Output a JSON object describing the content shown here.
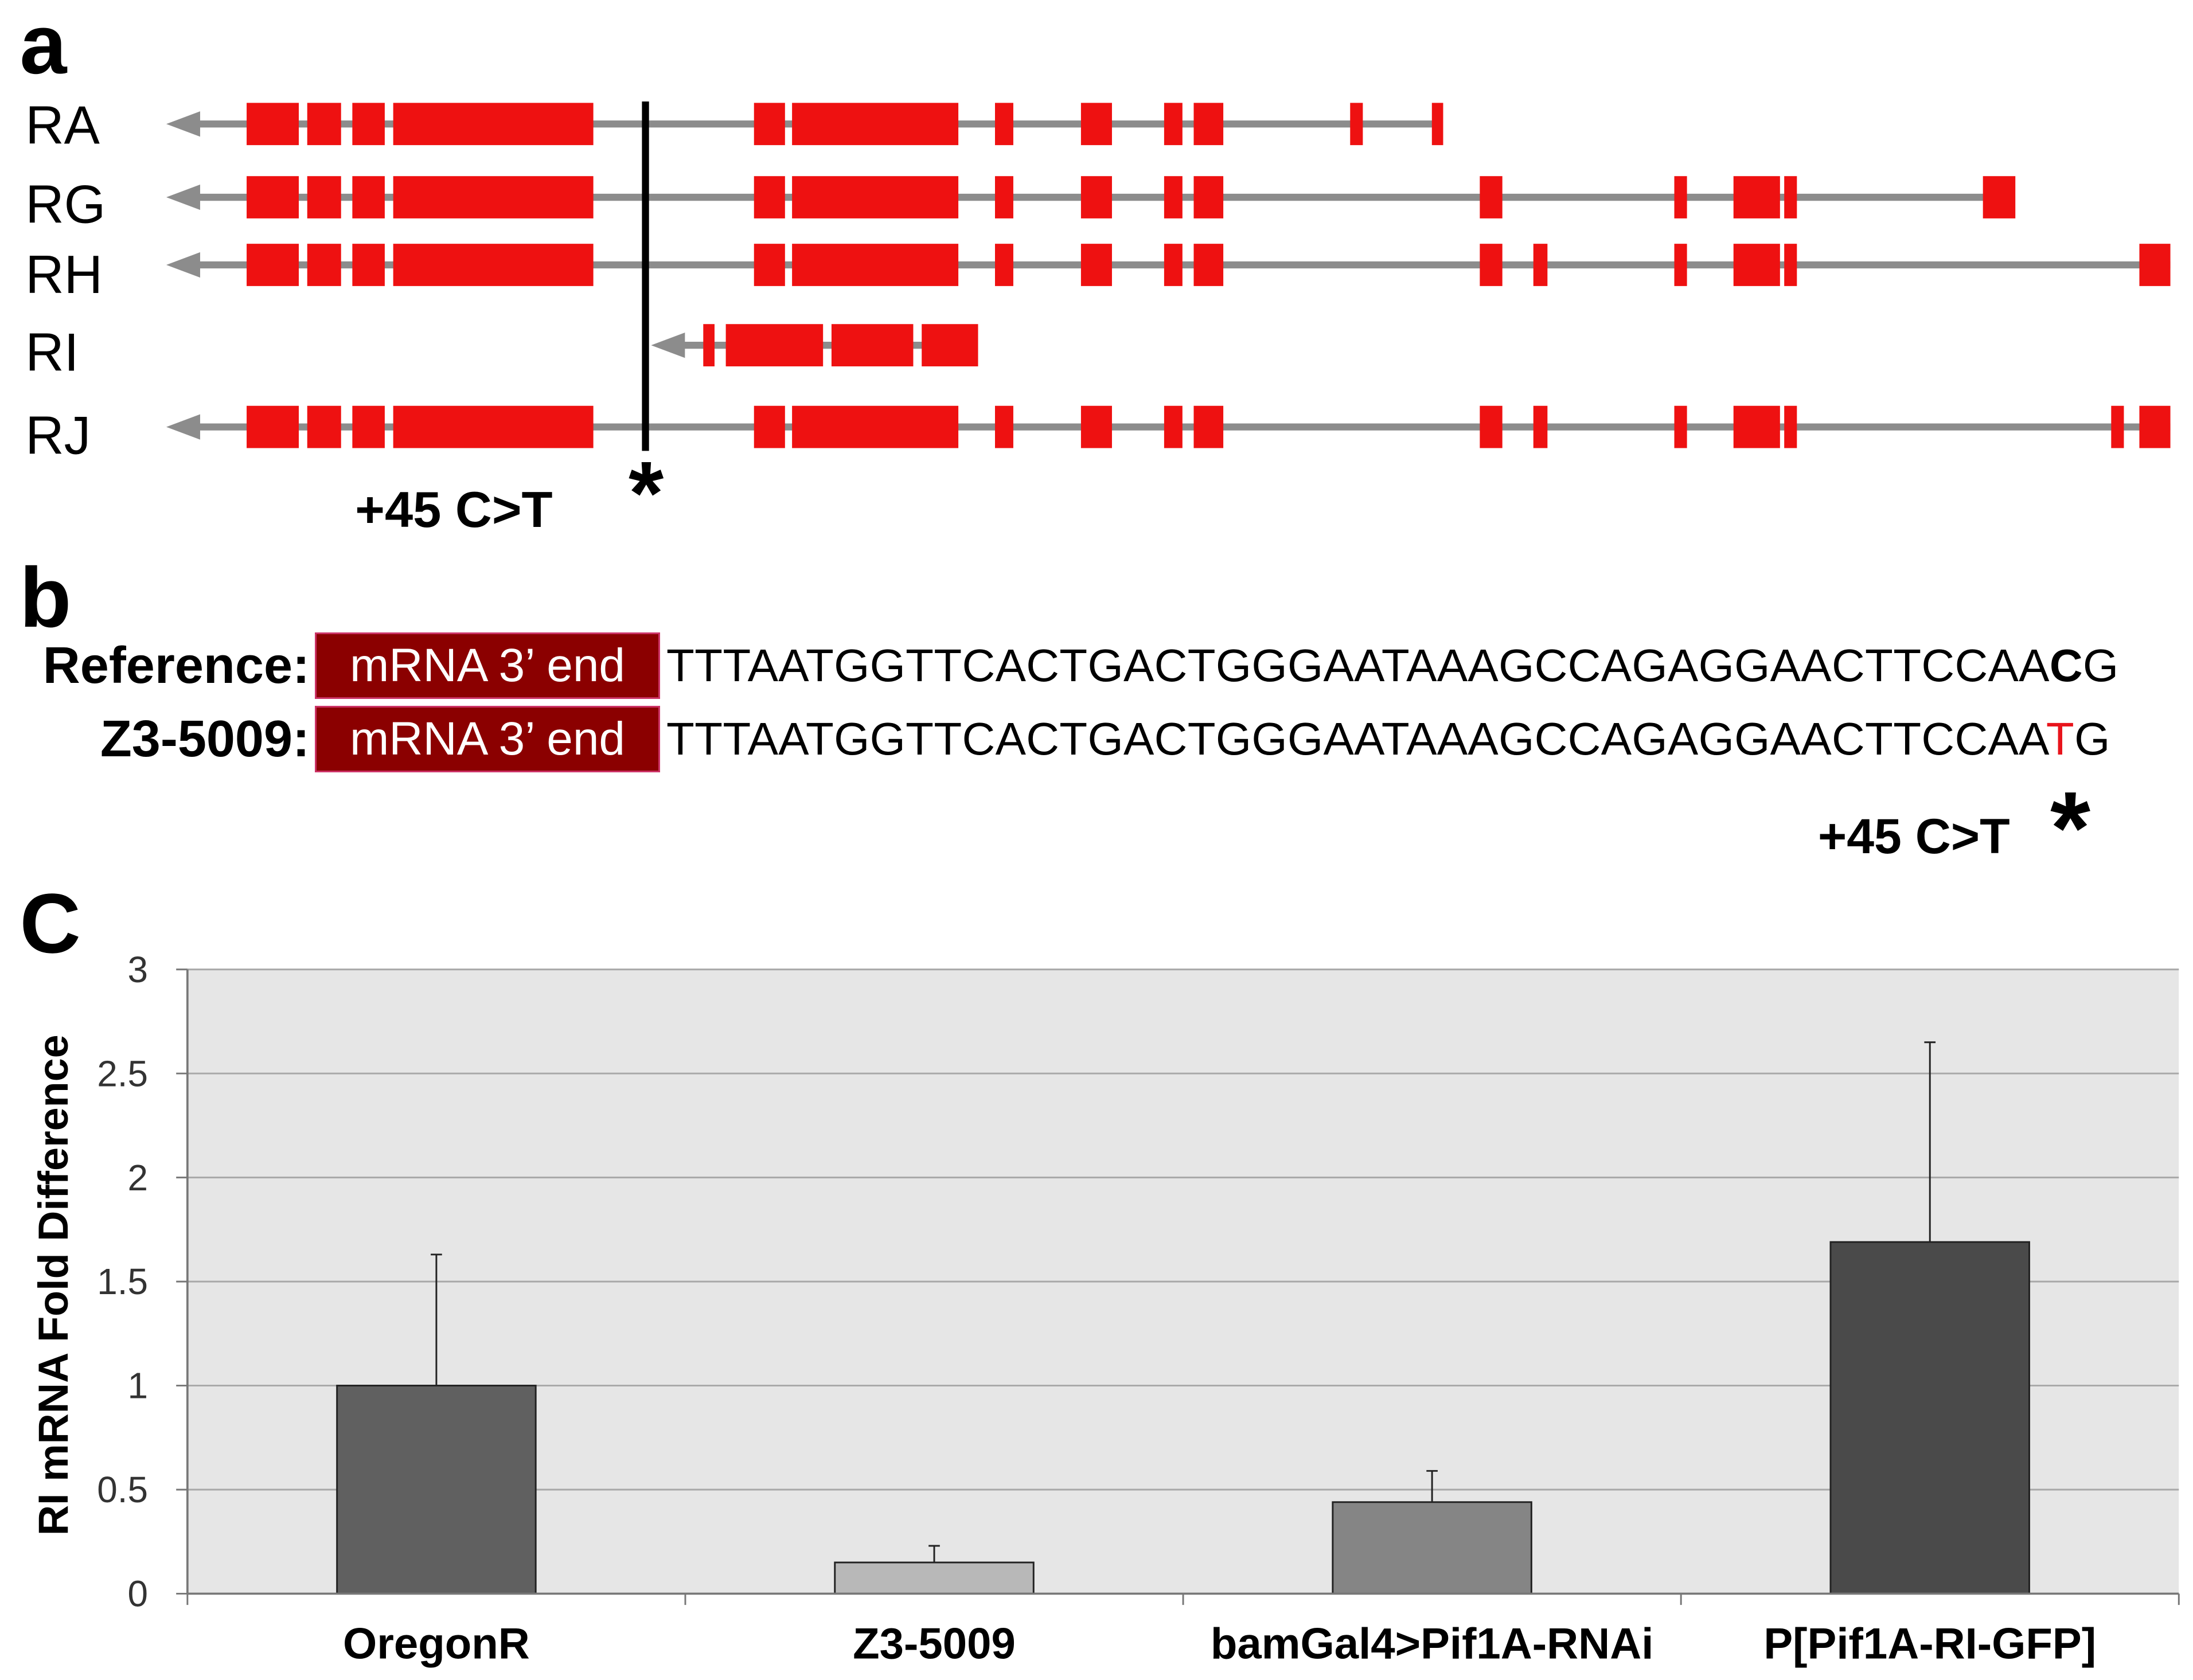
{
  "panel_a": {
    "letter": "a",
    "transcripts": [
      {
        "label": "RA",
        "exons": [
          [
            175,
            212
          ],
          [
            218,
            242
          ],
          [
            250,
            273
          ],
          [
            279,
            421
          ],
          [
            535,
            557
          ],
          [
            562,
            680
          ],
          [
            706,
            719
          ],
          [
            767,
            789
          ],
          [
            826,
            839
          ],
          [
            847,
            868
          ],
          [
            958,
            967
          ],
          [
            1016,
            1024
          ]
        ],
        "line_end": 1022
      },
      {
        "label": "RG",
        "exons": [
          [
            175,
            212
          ],
          [
            218,
            242
          ],
          [
            250,
            273
          ],
          [
            279,
            421
          ],
          [
            535,
            557
          ],
          [
            562,
            680
          ],
          [
            706,
            719
          ],
          [
            767,
            789
          ],
          [
            826,
            839
          ],
          [
            847,
            868
          ],
          [
            1050,
            1066
          ],
          [
            1188,
            1197
          ],
          [
            1230,
            1263
          ],
          [
            1266,
            1275
          ],
          [
            1407,
            1430
          ]
        ],
        "line_end": 1420
      },
      {
        "label": "RH",
        "exons": [
          [
            175,
            212
          ],
          [
            218,
            242
          ],
          [
            250,
            273
          ],
          [
            279,
            421
          ],
          [
            535,
            557
          ],
          [
            562,
            680
          ],
          [
            706,
            719
          ],
          [
            767,
            789
          ],
          [
            826,
            839
          ],
          [
            847,
            868
          ],
          [
            1050,
            1066
          ],
          [
            1088,
            1098
          ],
          [
            1188,
            1197
          ],
          [
            1230,
            1263
          ],
          [
            1266,
            1275
          ],
          [
            1518,
            1540
          ]
        ],
        "line_end": 1540
      },
      {
        "label": "RI",
        "exons": [
          [
            499,
            507
          ],
          [
            515,
            584
          ],
          [
            590,
            648
          ],
          [
            654,
            694
          ]
        ],
        "line_end": 694,
        "line_start": 462
      },
      {
        "label": "RJ",
        "exons": [
          [
            175,
            212
          ],
          [
            218,
            242
          ],
          [
            250,
            273
          ],
          [
            279,
            421
          ],
          [
            535,
            557
          ],
          [
            562,
            680
          ],
          [
            706,
            719
          ],
          [
            767,
            789
          ],
          [
            826,
            839
          ],
          [
            847,
            868
          ],
          [
            1050,
            1066
          ],
          [
            1088,
            1098
          ],
          [
            1188,
            1197
          ],
          [
            1230,
            1263
          ],
          [
            1266,
            1275
          ],
          [
            1498,
            1507
          ],
          [
            1518,
            1540
          ]
        ],
        "line_end": 1540
      }
    ],
    "mutation_label": "+45 C>T",
    "star": "*",
    "colors": {
      "exon": "#ee1111",
      "intron": "#8c8c8c",
      "marker": "#000000"
    }
  },
  "panel_b": {
    "letter": "b",
    "rows": [
      {
        "label": "Reference:",
        "box": "mRNA 3’ end",
        "seq_main": "TTTAATGGTTCACTGACTGGGAATAAAGCCAGAGGAACTTCCAA",
        "seq_var": "C",
        "seq_tail": "G"
      },
      {
        "label": "Z3-5009:",
        "box": "mRNA 3’ end",
        "seq_main": "TTTAATGGTTCACTGACTGGGAATAAAGCCAGAGGAACTTCCAA",
        "seq_var": "T",
        "seq_tail": "G"
      }
    ],
    "mutation_label": "+45 C>T",
    "star": "*",
    "colors": {
      "box": "#8b0000",
      "variant": "#e8141c"
    }
  },
  "panel_c": {
    "letter": "C",
    "chart_data": {
      "type": "bar",
      "categories": [
        "OregonR",
        "Z3-5009",
        "bamGal4>Pif1A-RNAi",
        "P[Pif1A-RI-GFP]"
      ],
      "values": [
        1.0,
        0.15,
        0.44,
        1.69
      ],
      "error_upper": [
        1.63,
        0.23,
        0.59,
        2.65
      ],
      "bar_colors": [
        "#606060",
        "#b8b8b8",
        "#858585",
        "#4a4a4a"
      ],
      "ylabel": "RI mRNA Fold Difference",
      "xlabel": "",
      "ylim": [
        0,
        3
      ],
      "yticks": [
        0,
        0.5,
        1,
        1.5,
        2,
        2.5,
        3
      ],
      "ytick_labels": [
        "0",
        "0.5",
        "1",
        "1.5",
        "2",
        "2.5",
        "3"
      ],
      "grid": true,
      "plot_background": "#e6e6e6"
    }
  }
}
